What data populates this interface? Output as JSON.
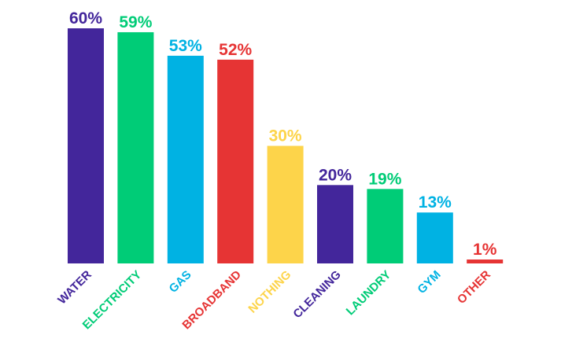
{
  "chart_data": {
    "type": "bar",
    "title": "",
    "xlabel": "",
    "ylabel": "",
    "ylim": [
      0,
      60
    ],
    "grid": false,
    "legend": "none",
    "categories": [
      "WATER",
      "ELECTRICITY",
      "GAS",
      "BROADBAND",
      "NOTHING",
      "CLEANING",
      "LAUNDRY",
      "GYM",
      "OTHER"
    ],
    "values": [
      60,
      59,
      53,
      52,
      30,
      20,
      19,
      13,
      1
    ],
    "value_labels": [
      "60%",
      "59%",
      "53%",
      "52%",
      "30%",
      "20%",
      "19%",
      "13%",
      "1%"
    ],
    "colors": [
      "#43269b",
      "#00cc77",
      "#00b2e3",
      "#e63434",
      "#fdd44a",
      "#43269b",
      "#00cc77",
      "#00b2e3",
      "#e63434"
    ]
  }
}
